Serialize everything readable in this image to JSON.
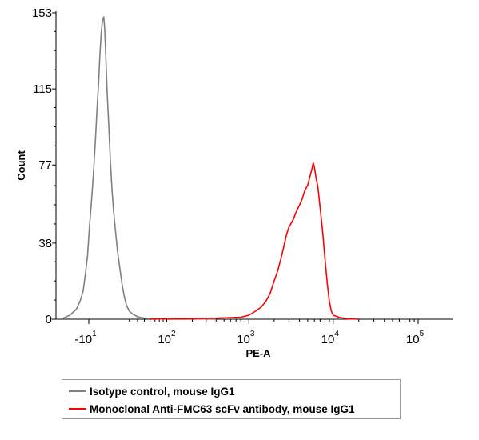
{
  "chart_data": {
    "type": "area",
    "title": "",
    "xlabel": "PE-A",
    "ylabel": "Count",
    "xscale": "logicle",
    "x_tick_labels": [
      {
        "base": "-10",
        "exp": "1"
      },
      {
        "base": "10",
        "exp": "2"
      },
      {
        "base": "10",
        "exp": "3"
      },
      {
        "base": "10",
        "exp": "4"
      },
      {
        "base": "10",
        "exp": "5"
      }
    ],
    "y_ticks": [
      0,
      38,
      77,
      115,
      153
    ],
    "ylim": [
      0,
      153
    ],
    "legend_position": "bottom",
    "series": [
      {
        "name": "Isotype control, mouse IgG1",
        "color": "#808080",
        "points": [
          [
            -60,
            0
          ],
          [
            -40,
            0.5
          ],
          [
            -30,
            2
          ],
          [
            -22,
            5
          ],
          [
            -18,
            9
          ],
          [
            -15,
            14
          ],
          [
            -13,
            22
          ],
          [
            -11,
            32
          ],
          [
            -9.5,
            46
          ],
          [
            -8,
            58
          ],
          [
            -6.5,
            72
          ],
          [
            -5,
            90
          ],
          [
            -4,
            105
          ],
          [
            -3,
            118
          ],
          [
            -2.2,
            132
          ],
          [
            -1.4,
            143
          ],
          [
            -0.7,
            149
          ],
          [
            0,
            151
          ],
          [
            0.5,
            145
          ],
          [
            1.2,
            130
          ],
          [
            2,
            112
          ],
          [
            3,
            95
          ],
          [
            4,
            78
          ],
          [
            5,
            65
          ],
          [
            6,
            55
          ],
          [
            7.5,
            44
          ],
          [
            9,
            34
          ],
          [
            11,
            25
          ],
          [
            13,
            17
          ],
          [
            15,
            11
          ],
          [
            17,
            7
          ],
          [
            20,
            4
          ],
          [
            24,
            2.5
          ],
          [
            30,
            1.2
          ],
          [
            40,
            0.5
          ],
          [
            60,
            0
          ],
          [
            100,
            0.3
          ],
          [
            200,
            0.2
          ],
          [
            400,
            0
          ]
        ]
      },
      {
        "name": "Monoclonal Anti-FMC63 scFv antibody, mouse IgG1",
        "color": "#ff0000",
        "points": [
          [
            50,
            0
          ],
          [
            100,
            0.3
          ],
          [
            200,
            0.3
          ],
          [
            400,
            0.5
          ],
          [
            600,
            0.8
          ],
          [
            800,
            1
          ],
          [
            1000,
            2
          ],
          [
            1200,
            4
          ],
          [
            1400,
            6
          ],
          [
            1600,
            9
          ],
          [
            1800,
            13
          ],
          [
            2000,
            19
          ],
          [
            2200,
            24
          ],
          [
            2400,
            30
          ],
          [
            2600,
            36
          ],
          [
            2800,
            42
          ],
          [
            3000,
            46
          ],
          [
            3200,
            48
          ],
          [
            3400,
            50
          ],
          [
            3600,
            53
          ],
          [
            3800,
            55
          ],
          [
            4000,
            57
          ],
          [
            4300,
            60
          ],
          [
            4600,
            64
          ],
          [
            5000,
            67
          ],
          [
            5300,
            71
          ],
          [
            5600,
            75
          ],
          [
            5800,
            78
          ],
          [
            6000,
            76
          ],
          [
            6200,
            72
          ],
          [
            6600,
            66
          ],
          [
            7000,
            56
          ],
          [
            7500,
            44
          ],
          [
            8000,
            30
          ],
          [
            8500,
            18
          ],
          [
            9000,
            9
          ],
          [
            9500,
            4
          ],
          [
            10000,
            2
          ],
          [
            12000,
            0.8
          ],
          [
            15000,
            0.2
          ],
          [
            20000,
            0
          ]
        ]
      }
    ]
  }
}
